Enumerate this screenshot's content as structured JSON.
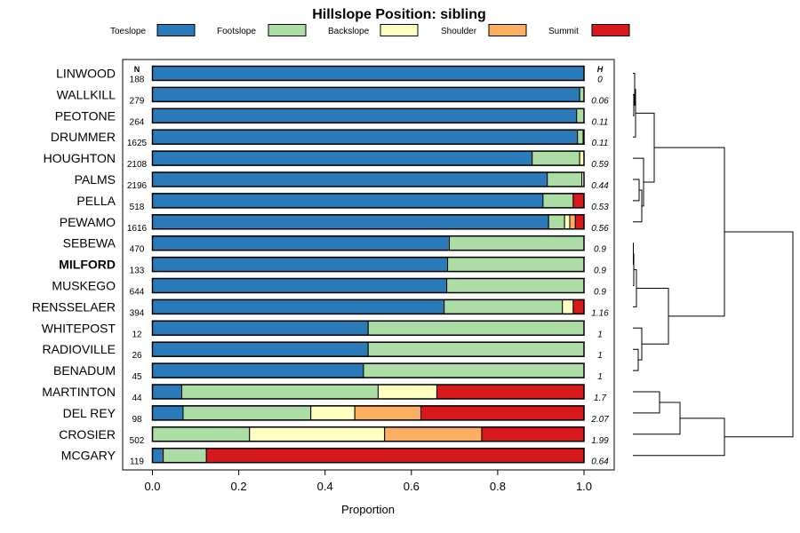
{
  "chart_data": {
    "type": "bar",
    "orientation": "horizontal",
    "stacked": true,
    "title": "Hillslope Position: sibling",
    "xlabel": "Proportion",
    "xlim": [
      0,
      1
    ],
    "xticks": [
      "0.0",
      "0.2",
      "0.4",
      "0.6",
      "0.8",
      "1.0"
    ],
    "n_header": "N",
    "h_header": "H",
    "highlighted": "MILFORD",
    "legend_position": "top",
    "legend": [
      {
        "name": "Toeslope",
        "color": "#2b7bba"
      },
      {
        "name": "Footslope",
        "color": "#abdda4"
      },
      {
        "name": "Backslope",
        "color": "#ffffbf"
      },
      {
        "name": "Shoulder",
        "color": "#fdae61"
      },
      {
        "name": "Summit",
        "color": "#d7191c"
      }
    ],
    "rows": [
      {
        "name": "LINWOOD",
        "n": "188",
        "h": "0",
        "values": [
          1.0,
          0,
          0,
          0,
          0
        ]
      },
      {
        "name": "WALLKILL",
        "n": "279",
        "h": "0.06",
        "values": [
          0.99,
          0.01,
          0,
          0,
          0
        ]
      },
      {
        "name": "PEOTONE",
        "n": "264",
        "h": "0.11",
        "values": [
          0.983,
          0.017,
          0,
          0,
          0
        ]
      },
      {
        "name": "DRUMMER",
        "n": "1625",
        "h": "0.11",
        "values": [
          0.985,
          0.013,
          0.002,
          0,
          0
        ]
      },
      {
        "name": "HOUGHTON",
        "n": "2108",
        "h": "0.59",
        "values": [
          0.88,
          0.11,
          0.01,
          0,
          0
        ]
      },
      {
        "name": "PALMS",
        "n": "2196",
        "h": "0.44",
        "values": [
          0.915,
          0.08,
          0.005,
          0,
          0
        ]
      },
      {
        "name": "PELLA",
        "n": "518",
        "h": "0.53",
        "values": [
          0.905,
          0.07,
          0,
          0,
          0.025
        ]
      },
      {
        "name": "PEWAMO",
        "n": "1616",
        "h": "0.56",
        "values": [
          0.918,
          0.037,
          0.012,
          0.013,
          0.02
        ]
      },
      {
        "name": "SEBEWA",
        "n": "470",
        "h": "0.9",
        "values": [
          0.688,
          0.312,
          0,
          0,
          0
        ]
      },
      {
        "name": "MILFORD",
        "n": "133",
        "h": "0.9",
        "values": [
          0.684,
          0.316,
          0,
          0,
          0
        ]
      },
      {
        "name": "MUSKEGO",
        "n": "644",
        "h": "0.9",
        "values": [
          0.682,
          0.318,
          0,
          0,
          0
        ]
      },
      {
        "name": "RENSSELAER",
        "n": "394",
        "h": "1.16",
        "values": [
          0.676,
          0.274,
          0.025,
          0,
          0.025
        ]
      },
      {
        "name": "WHITEPOST",
        "n": "12",
        "h": "1",
        "values": [
          0.5,
          0.5,
          0,
          0,
          0
        ]
      },
      {
        "name": "RADIOVILLE",
        "n": "26",
        "h": "1",
        "values": [
          0.5,
          0.5,
          0,
          0,
          0
        ]
      },
      {
        "name": "BENADUM",
        "n": "45",
        "h": "1",
        "values": [
          0.489,
          0.511,
          0,
          0,
          0
        ]
      },
      {
        "name": "MARTINTON",
        "n": "44",
        "h": "1.7",
        "values": [
          0.068,
          0.455,
          0.136,
          0,
          0.341
        ]
      },
      {
        "name": "DEL REY",
        "n": "98",
        "h": "2.07",
        "values": [
          0.071,
          0.296,
          0.102,
          0.153,
          0.378
        ]
      },
      {
        "name": "CROSIER",
        "n": "502",
        "h": "1.99",
        "values": [
          0,
          0.225,
          0.313,
          0.225,
          0.237
        ]
      },
      {
        "name": "MCGARY",
        "n": "119",
        "h": "0.64",
        "values": [
          0.025,
          0.1,
          0,
          0,
          0.875
        ]
      }
    ]
  }
}
